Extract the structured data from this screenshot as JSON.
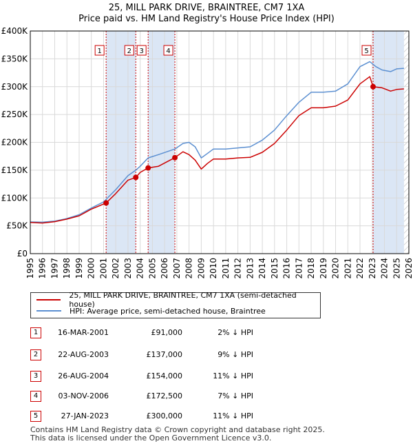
{
  "title": "25, MILL PARK DRIVE, BRAINTREE, CM7 1XA",
  "subtitle": "Price paid vs. HM Land Registry's House Price Index (HPI)",
  "colors": {
    "property": "#cc0000",
    "hpi": "#5b8fd1",
    "shade": "#dbe6f5",
    "grid": "#d9d9d9"
  },
  "chart_data": {
    "type": "line",
    "x_range": [
      1995,
      2026
    ],
    "ylim": [
      0,
      400000
    ],
    "y_ticks": [
      {
        "value": 0,
        "label": "£0"
      },
      {
        "value": 50000,
        "label": "£50K"
      },
      {
        "value": 100000,
        "label": "£100K"
      },
      {
        "value": 150000,
        "label": "£150K"
      },
      {
        "value": 200000,
        "label": "£200K"
      },
      {
        "value": 250000,
        "label": "£250K"
      },
      {
        "value": 300000,
        "label": "£300K"
      },
      {
        "value": 350000,
        "label": "£350K"
      },
      {
        "value": 400000,
        "label": "£400K"
      }
    ],
    "x_ticks": [
      "1995",
      "1996",
      "1997",
      "1998",
      "1999",
      "2000",
      "2001",
      "2002",
      "2003",
      "2004",
      "2005",
      "2006",
      "2007",
      "2008",
      "2009",
      "2010",
      "2011",
      "2012",
      "2013",
      "2014",
      "2015",
      "2016",
      "2017",
      "2018",
      "2019",
      "2020",
      "2021",
      "2022",
      "2023",
      "2024",
      "2025",
      "2026"
    ],
    "shaded_periods": [
      [
        2001.21,
        2003.64
      ],
      [
        2004.65,
        2006.84
      ],
      [
        2023.07,
        2025.6
      ]
    ],
    "hatched_period": [
      2025.6,
      2026
    ],
    "series": [
      {
        "name": "25, MILL PARK DRIVE, BRAINTREE, CM7 1XA (semi-detached house)",
        "points": [
          [
            1995.0,
            56000
          ],
          [
            1996.0,
            55000
          ],
          [
            1997.0,
            57500
          ],
          [
            1998.0,
            62000
          ],
          [
            1999.0,
            68000
          ],
          [
            2000.0,
            80000
          ],
          [
            2001.21,
            91000
          ],
          [
            2002.0,
            108000
          ],
          [
            2003.0,
            132000
          ],
          [
            2003.64,
            137000
          ],
          [
            2004.0,
            146000
          ],
          [
            2004.65,
            154000
          ],
          [
            2005.5,
            157000
          ],
          [
            2006.84,
            172500
          ],
          [
            2007.5,
            183000
          ],
          [
            2008.0,
            178000
          ],
          [
            2008.5,
            168000
          ],
          [
            2009.0,
            152000
          ],
          [
            2009.5,
            162000
          ],
          [
            2010.0,
            170000
          ],
          [
            2011.0,
            170000
          ],
          [
            2012.0,
            172000
          ],
          [
            2013.0,
            173000
          ],
          [
            2014.0,
            182000
          ],
          [
            2015.0,
            198000
          ],
          [
            2016.0,
            222000
          ],
          [
            2017.0,
            248000
          ],
          [
            2018.0,
            262000
          ],
          [
            2019.0,
            262000
          ],
          [
            2020.0,
            265000
          ],
          [
            2021.0,
            276000
          ],
          [
            2022.0,
            305000
          ],
          [
            2022.8,
            318000
          ],
          [
            2023.07,
            300000
          ],
          [
            2023.8,
            298000
          ],
          [
            2024.5,
            292000
          ],
          [
            2025.0,
            295000
          ],
          [
            2025.6,
            296000
          ]
        ]
      },
      {
        "name": "HPI: Average price, semi-detached house, Braintree",
        "points": [
          [
            1995.0,
            57000
          ],
          [
            1996.0,
            56500
          ],
          [
            1997.0,
            58500
          ],
          [
            1998.0,
            63000
          ],
          [
            1999.0,
            70000
          ],
          [
            2000.0,
            82000
          ],
          [
            2001.0,
            93000
          ],
          [
            2002.0,
            115000
          ],
          [
            2003.0,
            140000
          ],
          [
            2003.64,
            150000
          ],
          [
            2004.0,
            157000
          ],
          [
            2004.65,
            172000
          ],
          [
            2005.5,
            178000
          ],
          [
            2006.84,
            188000
          ],
          [
            2007.5,
            198000
          ],
          [
            2008.0,
            200000
          ],
          [
            2008.5,
            192000
          ],
          [
            2009.0,
            172000
          ],
          [
            2009.5,
            180000
          ],
          [
            2010.0,
            188000
          ],
          [
            2011.0,
            188000
          ],
          [
            2012.0,
            190000
          ],
          [
            2013.0,
            192000
          ],
          [
            2014.0,
            204000
          ],
          [
            2015.0,
            222000
          ],
          [
            2016.0,
            248000
          ],
          [
            2017.0,
            272000
          ],
          [
            2018.0,
            290000
          ],
          [
            2019.0,
            290000
          ],
          [
            2020.0,
            292000
          ],
          [
            2021.0,
            305000
          ],
          [
            2022.0,
            336000
          ],
          [
            2022.8,
            345000
          ],
          [
            2023.3,
            336000
          ],
          [
            2023.8,
            330000
          ],
          [
            2024.5,
            327000
          ],
          [
            2025.0,
            332000
          ],
          [
            2025.6,
            333000
          ]
        ]
      }
    ],
    "sales": [
      {
        "label": "1",
        "year": 2001.21,
        "price": 91000
      },
      {
        "label": "2",
        "year": 2003.64,
        "price": 137000
      },
      {
        "label": "3",
        "year": 2004.65,
        "price": 154000
      },
      {
        "label": "4",
        "year": 2006.84,
        "price": 172500
      },
      {
        "label": "5",
        "year": 2023.07,
        "price": 300000
      }
    ]
  },
  "legend": {
    "property": "25, MILL PARK DRIVE, BRAINTREE, CM7 1XA (semi-detached house)",
    "hpi": "HPI: Average price, semi-detached house, Braintree"
  },
  "transactions": [
    {
      "num": "1",
      "date": "16-MAR-2001",
      "price": "£91,000",
      "hpi": "2% ↓ HPI"
    },
    {
      "num": "2",
      "date": "22-AUG-2003",
      "price": "£137,000",
      "hpi": "9% ↓ HPI"
    },
    {
      "num": "3",
      "date": "26-AUG-2004",
      "price": "£154,000",
      "hpi": "11% ↓ HPI"
    },
    {
      "num": "4",
      "date": "03-NOV-2006",
      "price": "£172,500",
      "hpi": "7% ↓ HPI"
    },
    {
      "num": "5",
      "date": "27-JAN-2023",
      "price": "£300,000",
      "hpi": "11% ↓ HPI"
    }
  ],
  "footer": {
    "line1": "Contains HM Land Registry data © Crown copyright and database right 2025.",
    "line2": "This data is licensed under the Open Government Licence v3.0."
  }
}
